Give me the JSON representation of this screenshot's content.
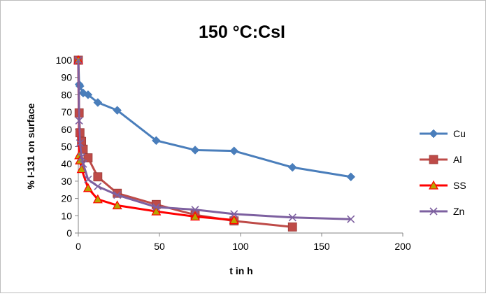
{
  "chart_data": {
    "type": "line",
    "title": "150 °C:CsI",
    "xlabel": "t in h",
    "ylabel": "% I-131 on surface",
    "xlim": [
      0,
      200
    ],
    "ylim": [
      0,
      100
    ],
    "xticks": [
      "0",
      "50",
      "100",
      "150",
      "200"
    ],
    "yticks": [
      "0",
      "10",
      "20",
      "30",
      "40",
      "50",
      "60",
      "70",
      "80",
      "90",
      "100"
    ],
    "grid": false,
    "legend_position": "right",
    "series": [
      {
        "name": "Cu",
        "color": "#4A7EBB",
        "marker": "diamond",
        "points": [
          [
            0,
            100
          ],
          [
            0.5,
            86
          ],
          [
            1,
            85
          ],
          [
            3,
            81
          ],
          [
            6,
            80
          ],
          [
            12,
            75.5
          ],
          [
            24,
            71
          ],
          [
            48,
            53.5
          ],
          [
            72,
            48
          ],
          [
            96,
            47.5
          ],
          [
            132,
            38
          ],
          [
            168,
            32.5
          ]
        ]
      },
      {
        "name": "Al",
        "color": "#BE4B48",
        "marker": "square",
        "points": [
          [
            0,
            100
          ],
          [
            0.5,
            69.5
          ],
          [
            1,
            58
          ],
          [
            2,
            53
          ],
          [
            3,
            48.5
          ],
          [
            6,
            43.5
          ],
          [
            12,
            32.5
          ],
          [
            24,
            23
          ],
          [
            48,
            16.5
          ],
          [
            72,
            10.5
          ],
          [
            96,
            7
          ],
          [
            132,
            3.5
          ]
        ]
      },
      {
        "name": "SS",
        "color": "#FF0000",
        "marker": "triangle",
        "points": [
          [
            0,
            100
          ],
          [
            0.5,
            45
          ],
          [
            1,
            42
          ],
          [
            2,
            37
          ],
          [
            6,
            26
          ],
          [
            12,
            19.5
          ],
          [
            24,
            16
          ],
          [
            48,
            12.5
          ],
          [
            72,
            9.5
          ],
          [
            96,
            7.5
          ]
        ]
      },
      {
        "name": "Zn",
        "color": "#7D60A0",
        "marker": "x",
        "points": [
          [
            0,
            100
          ],
          [
            0.5,
            65
          ],
          [
            1,
            52
          ],
          [
            2,
            44
          ],
          [
            3,
            40
          ],
          [
            6,
            31
          ],
          [
            12,
            27
          ],
          [
            24,
            22
          ],
          [
            48,
            15
          ],
          [
            72,
            13.5
          ],
          [
            96,
            11
          ],
          [
            132,
            9
          ],
          [
            168,
            8
          ]
        ]
      }
    ]
  }
}
